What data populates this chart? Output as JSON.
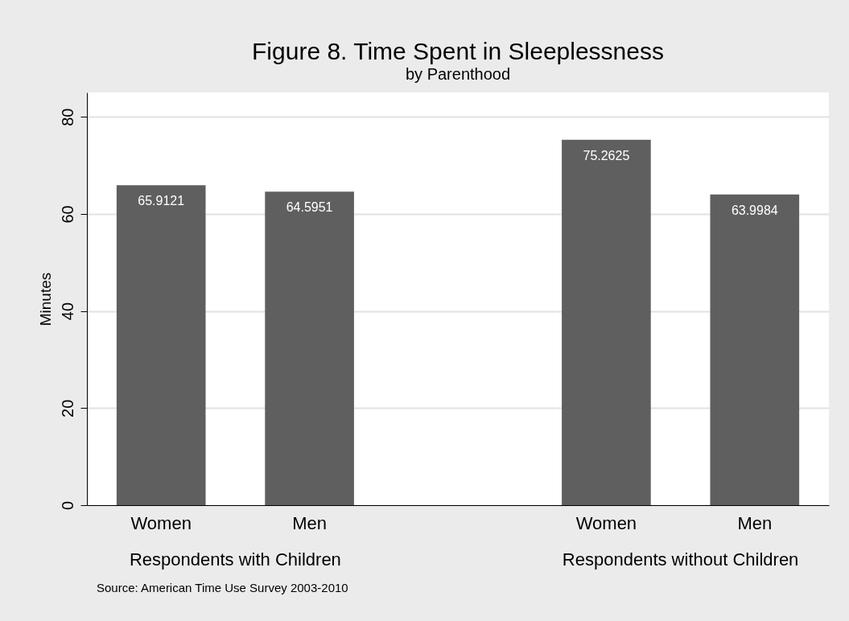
{
  "chart_data": {
    "type": "bar",
    "title": "Figure 8. Time Spent in Sleeplessness",
    "subtitle": "by Parenthood",
    "ylabel": "Minutes",
    "categories": [
      "Women",
      "Men",
      "Women",
      "Men"
    ],
    "values": [
      65.9121,
      64.5951,
      75.2625,
      63.9984
    ],
    "color": "#5f5f5f",
    "ylim": [
      0,
      85
    ],
    "yticks": [
      0,
      20,
      40,
      60,
      80
    ],
    "grid": "y",
    "data_labels": true,
    "annotations": [
      "Respondents with Children",
      "Respondents without Children",
      "Source:  American Time Use Survey 2003-2010"
    ]
  }
}
